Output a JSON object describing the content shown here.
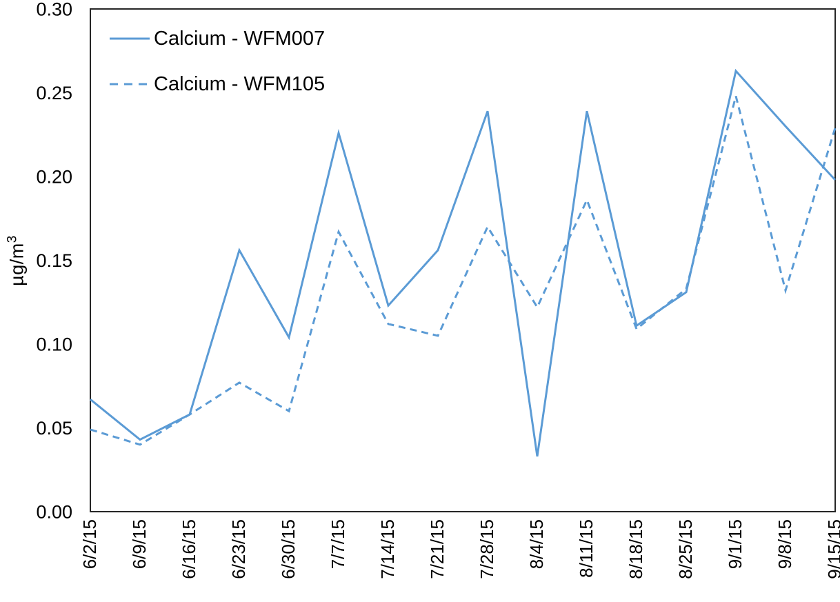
{
  "chart_data": {
    "type": "line",
    "title": "",
    "xlabel": "",
    "ylabel": "µg/m³",
    "ylabel_base": "µg/m",
    "ylabel_exponent": "3",
    "ylim": [
      0,
      0.3
    ],
    "ytick_labels": [
      "0.00",
      "0.05",
      "0.10",
      "0.15",
      "0.20",
      "0.25",
      "0.30"
    ],
    "ytick_values": [
      0,
      0.05,
      0.1,
      0.15,
      0.2,
      0.25,
      0.3
    ],
    "grid": false,
    "legend_position": "inside-top-left",
    "line_color": "#5B9BD5",
    "axis_color": "#262626",
    "text_color": "#000000",
    "background_color": "#FFFFFF",
    "categories": [
      "6/2/15",
      "6/9/15",
      "6/16/15",
      "6/23/15",
      "6/30/15",
      "7/7/15",
      "7/14/15",
      "7/21/15",
      "7/28/15",
      "8/4/15",
      "8/11/15",
      "8/18/15",
      "8/25/15",
      "9/1/15",
      "9/8/15",
      "9/15/15"
    ],
    "series": [
      {
        "name": "Calcium - WFM007",
        "style": "solid",
        "values": [
          0.067,
          0.043,
          0.058,
          0.156,
          0.104,
          0.226,
          0.123,
          0.156,
          0.239,
          0.033,
          0.239,
          0.111,
          0.131,
          0.263,
          0.23,
          0.198
        ]
      },
      {
        "name": "Calcium - WFM105",
        "style": "dashed",
        "values": [
          0.049,
          0.04,
          0.058,
          0.077,
          0.06,
          0.167,
          0.112,
          0.105,
          0.17,
          0.122,
          0.186,
          0.109,
          0.133,
          0.248,
          0.132,
          0.229
        ]
      }
    ]
  }
}
